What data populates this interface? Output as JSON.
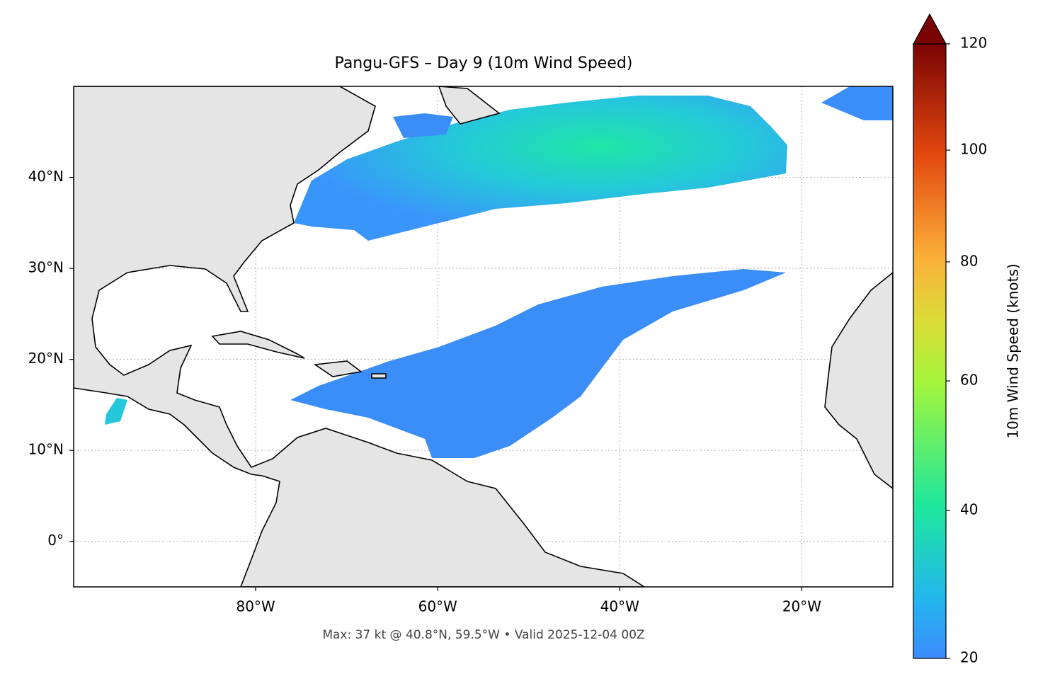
{
  "title": "Pangu-GFS – Day 9 (10m Wind Speed)",
  "footer": "Max: 37 kt @ 40.8°N, 59.5°W • Valid 2025-12-04 00Z",
  "map": {
    "xlim": [
      -100,
      -10
    ],
    "ylim": [
      -5,
      50
    ],
    "xticks": [
      {
        "value": -80,
        "label": "80°W"
      },
      {
        "value": -60,
        "label": "60°W"
      },
      {
        "value": -40,
        "label": "40°W"
      },
      {
        "value": -20,
        "label": "20°W"
      }
    ],
    "yticks": [
      {
        "value": 0,
        "label": "0°"
      },
      {
        "value": 10,
        "label": "10°N"
      },
      {
        "value": 20,
        "label": "20°N"
      },
      {
        "value": 30,
        "label": "30°N"
      },
      {
        "value": 40,
        "label": "40°N"
      }
    ],
    "grid": true
  },
  "colorbar": {
    "label": "10m Wind Speed (knots)",
    "lim": [
      20,
      120
    ],
    "ticks": [
      20,
      40,
      60,
      80,
      100,
      120
    ]
  }
}
